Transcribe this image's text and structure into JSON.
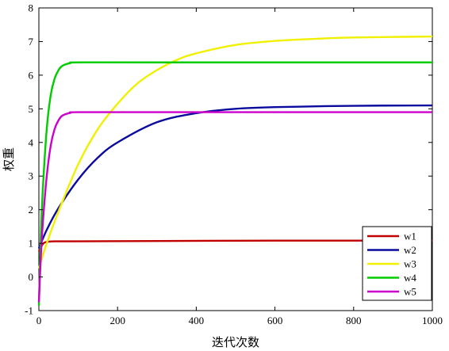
{
  "chart_data": {
    "type": "line",
    "xlabel": "迭代次数",
    "ylabel": "权重",
    "xlim": [
      0,
      1000
    ],
    "ylim": [
      -1,
      8
    ],
    "x_ticks": [
      "0",
      "200",
      "400",
      "600",
      "800",
      "1000"
    ],
    "y_ticks": [
      "-1",
      "0",
      "1",
      "2",
      "3",
      "4",
      "5",
      "6",
      "7",
      "8"
    ],
    "grid": false,
    "legend_position": "bottom-right",
    "series": [
      {
        "name": "w1",
        "color": "#c00000",
        "x": [
          0,
          10,
          20,
          40,
          100,
          300,
          600,
          1000
        ],
        "y": [
          0.75,
          0.98,
          1.04,
          1.06,
          1.06,
          1.07,
          1.08,
          1.08
        ]
      },
      {
        "name": "w2",
        "color": "#0a0a9e",
        "x": [
          0,
          20,
          50,
          100,
          150,
          200,
          300,
          400,
          500,
          600,
          800,
          1000
        ],
        "y": [
          0.85,
          1.4,
          2.05,
          2.9,
          3.55,
          4.0,
          4.6,
          4.87,
          5.0,
          5.05,
          5.09,
          5.1
        ]
      },
      {
        "name": "w3",
        "color": "#f0f000",
        "x": [
          0,
          20,
          50,
          100,
          150,
          200,
          250,
          300,
          350,
          400,
          500,
          600,
          700,
          800,
          1000
        ],
        "y": [
          0.25,
          1.0,
          1.95,
          3.35,
          4.4,
          5.15,
          5.75,
          6.15,
          6.45,
          6.65,
          6.9,
          7.02,
          7.08,
          7.12,
          7.15
        ]
      },
      {
        "name": "w4",
        "color": "#00cc00",
        "x": [
          0,
          5,
          10,
          20,
          30,
          40,
          50,
          60,
          80,
          100,
          300,
          1000
        ],
        "y": [
          -0.85,
          1.2,
          2.6,
          4.4,
          5.4,
          5.9,
          6.15,
          6.28,
          6.36,
          6.38,
          6.38,
          6.38
        ]
      },
      {
        "name": "w5",
        "color": "#cc00cc",
        "x": [
          0,
          5,
          10,
          20,
          30,
          40,
          50,
          60,
          80,
          100,
          300,
          1000
        ],
        "y": [
          -0.75,
          0.6,
          1.6,
          3.0,
          3.9,
          4.4,
          4.66,
          4.8,
          4.88,
          4.9,
          4.9,
          4.9
        ]
      }
    ]
  }
}
